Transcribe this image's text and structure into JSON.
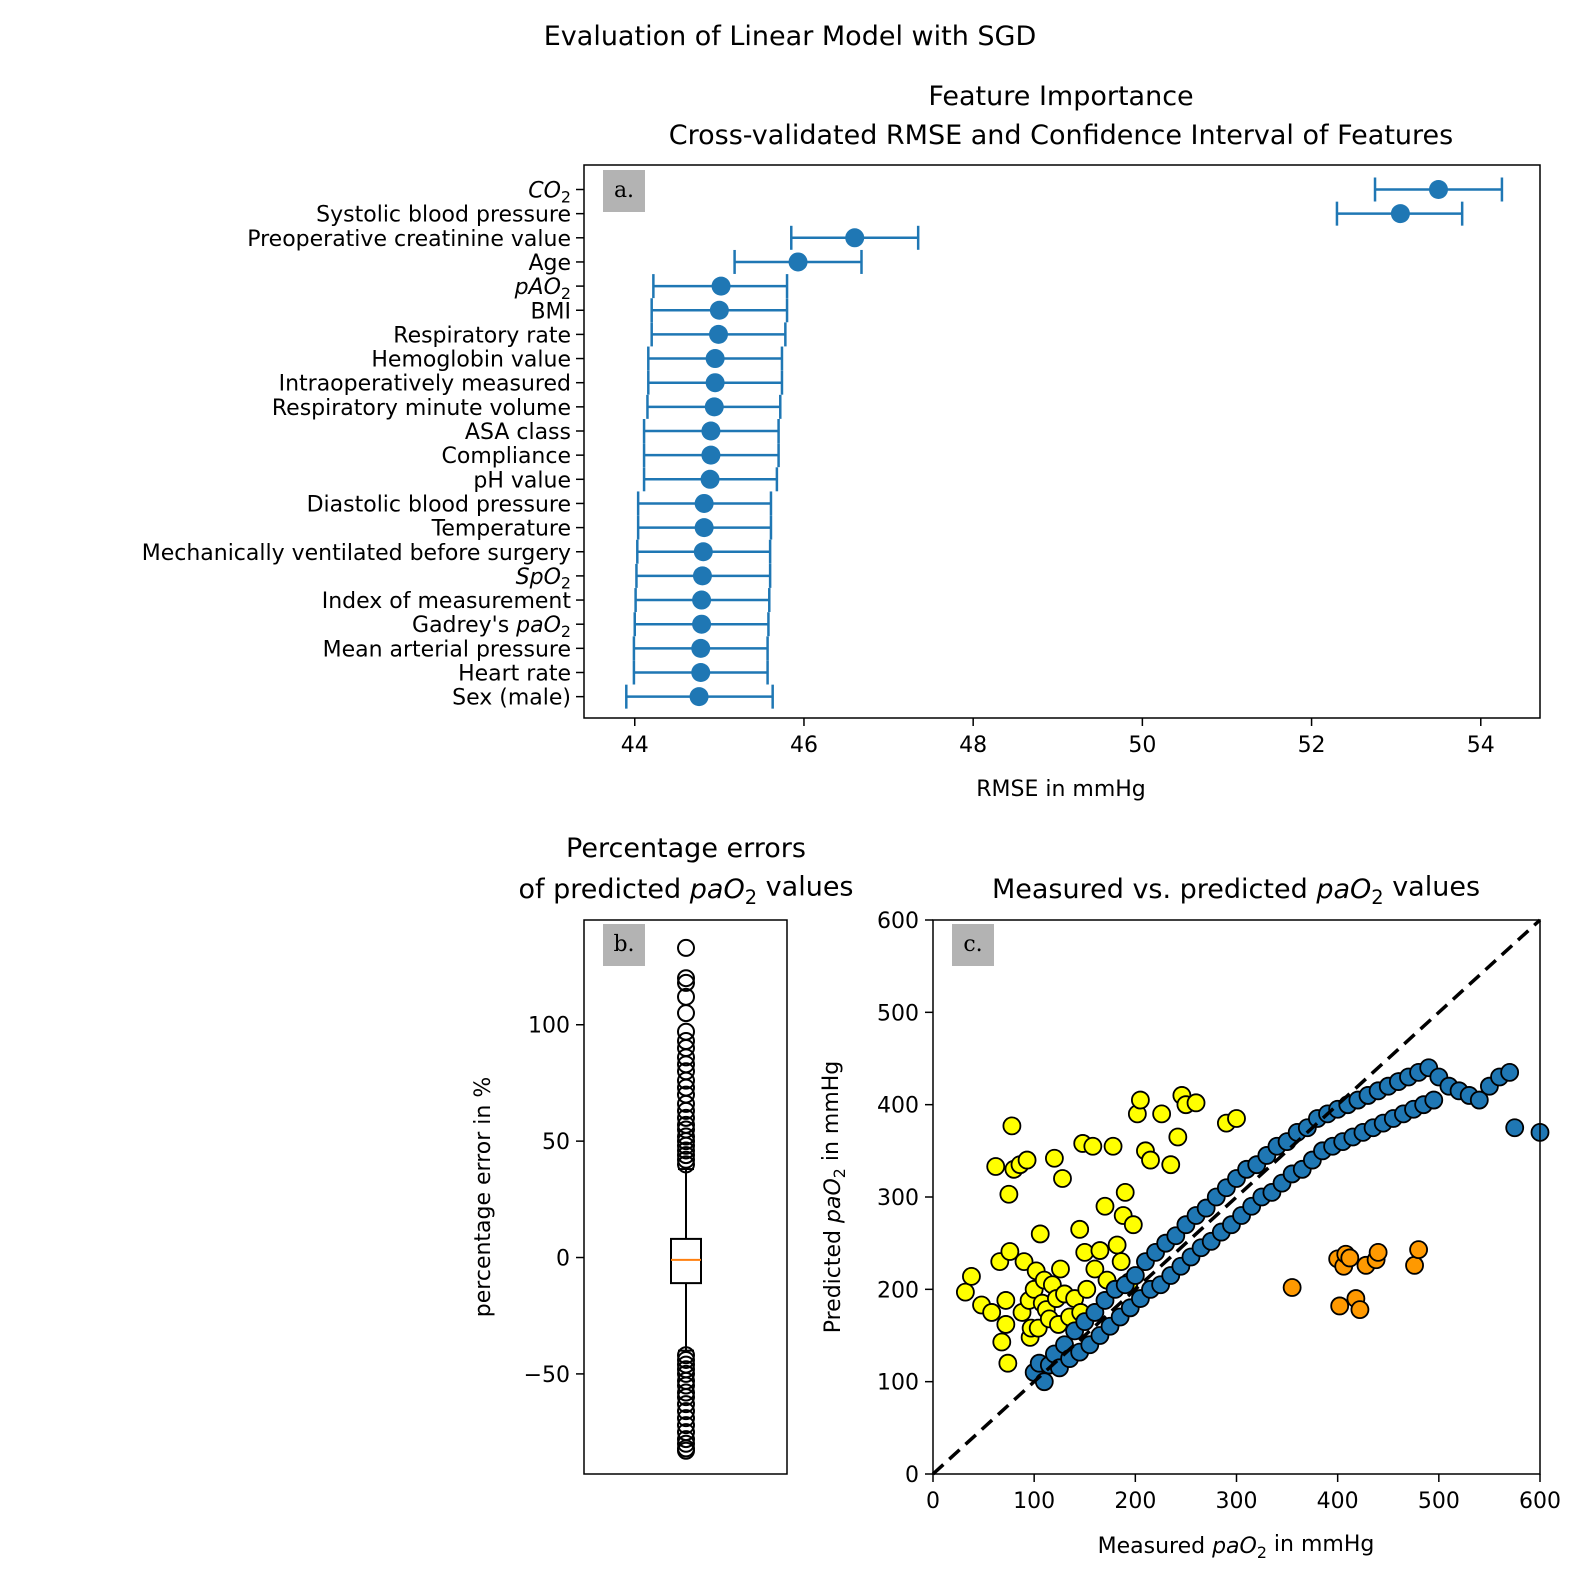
{
  "suptitle": "Evaluation of Linear Model with SGD",
  "colors": {
    "series_blue": "#1f77b4",
    "yellow": "#ffff00",
    "orange": "#ff9900",
    "median": "#ff7f0e",
    "tag_bg": "#b3b3b3"
  },
  "chart_data": [
    {
      "id": "a",
      "type": "errorbar",
      "panel_tag": "a.",
      "title": "Feature Importance",
      "subtitle": "Cross-validated RMSE and Confidence Interval of Features",
      "xlabel": "RMSE in mmHg",
      "ylabel": "",
      "xlim": [
        43.4,
        54.7
      ],
      "xticks": [
        44,
        46,
        48,
        50,
        52,
        54
      ],
      "grid": false,
      "features": [
        {
          "label": "CO",
          "sub": "2",
          "italic": true,
          "rmse": 53.5,
          "lo": 52.75,
          "hi": 54.25
        },
        {
          "label": "Systolic blood pressure",
          "rmse": 53.05,
          "lo": 52.3,
          "hi": 53.78
        },
        {
          "label": "Preoperative creatinine value",
          "rmse": 46.6,
          "lo": 45.85,
          "hi": 47.35
        },
        {
          "label": "Age",
          "rmse": 45.93,
          "lo": 45.18,
          "hi": 46.68
        },
        {
          "label": "pAO",
          "sub": "2",
          "italic": true,
          "rmse": 45.02,
          "lo": 44.22,
          "hi": 45.8
        },
        {
          "label": "BMI",
          "rmse": 45.0,
          "lo": 44.2,
          "hi": 45.8
        },
        {
          "label": "Respiratory rate",
          "rmse": 44.99,
          "lo": 44.2,
          "hi": 45.78
        },
        {
          "label": "Hemoglobin value",
          "rmse": 44.95,
          "lo": 44.16,
          "hi": 45.74
        },
        {
          "label": "Intraoperatively measured",
          "rmse": 44.95,
          "lo": 44.16,
          "hi": 45.74
        },
        {
          "label": "Respiratory minute volume",
          "rmse": 44.94,
          "lo": 44.15,
          "hi": 45.72
        },
        {
          "label": "ASA class",
          "rmse": 44.9,
          "lo": 44.11,
          "hi": 45.7
        },
        {
          "label": "Compliance",
          "rmse": 44.9,
          "lo": 44.11,
          "hi": 45.7
        },
        {
          "label": "pH value",
          "rmse": 44.89,
          "lo": 44.11,
          "hi": 45.68
        },
        {
          "label": "Diastolic blood pressure",
          "rmse": 44.82,
          "lo": 44.04,
          "hi": 45.61
        },
        {
          "label": "Temperature",
          "rmse": 44.82,
          "lo": 44.04,
          "hi": 45.61
        },
        {
          "label": "Mechanically ventilated before surgery",
          "rmse": 44.81,
          "lo": 44.03,
          "hi": 45.6
        },
        {
          "label": "SpO",
          "sub": "2",
          "italic": true,
          "rmse": 44.8,
          "lo": 44.02,
          "hi": 45.6
        },
        {
          "label": "Index of measurement",
          "rmse": 44.79,
          "lo": 44.01,
          "hi": 45.59
        },
        {
          "label": "Gadrey's ",
          "label_italic": "paO",
          "sub": "2",
          "rmse": 44.79,
          "lo": 44.0,
          "hi": 45.58
        },
        {
          "label": "Mean arterial pressure",
          "rmse": 44.78,
          "lo": 43.99,
          "hi": 45.57
        },
        {
          "label": "Heart rate",
          "rmse": 44.78,
          "lo": 43.99,
          "hi": 45.57
        },
        {
          "label": "Sex (male)",
          "rmse": 44.76,
          "lo": 43.9,
          "hi": 45.63
        }
      ]
    },
    {
      "id": "b",
      "type": "boxplot",
      "panel_tag": "b.",
      "title_line1": "Percentage errors",
      "title_line2_pre": "of predicted ",
      "title_line2_italic": "paO",
      "title_line2_sub": "2",
      "title_line2_post": " values",
      "xlabel": "",
      "ylabel": "percentage error in %",
      "ylim": [
        -93,
        145
      ],
      "yticks": [
        -50,
        0,
        50,
        100
      ],
      "ytick_labels": [
        "−50",
        "0",
        "50",
        "100"
      ],
      "q1": -11,
      "median": -1,
      "q3": 8,
      "whisker_low": -40,
      "whisker_high": 38,
      "outliers_high": [
        40,
        42,
        44,
        46,
        48,
        50,
        52,
        55,
        57,
        60,
        63,
        66,
        70,
        73,
        76,
        80,
        83,
        86,
        90,
        93,
        97,
        105,
        112,
        118,
        120,
        133
      ],
      "outliers_low": [
        -42,
        -44,
        -46,
        -48,
        -50,
        -53,
        -55,
        -58,
        -60,
        -63,
        -66,
        -69,
        -72,
        -75,
        -78,
        -80,
        -82,
        -83
      ]
    },
    {
      "id": "c",
      "type": "scatter",
      "panel_tag": "c.",
      "title_pre": "Measured vs. predicted ",
      "title_italic": "paO",
      "title_sub": "2",
      "title_post": " values",
      "xlabel_pre": "Measured ",
      "xlabel_italic": "paO",
      "xlabel_sub": "2",
      "xlabel_post": " in mmHg",
      "ylabel_pre": "Predicted ",
      "ylabel_italic": "paO",
      "ylabel_sub": "2",
      "ylabel_post": " in mmHg",
      "xlim": [
        0,
        600
      ],
      "ylim": [
        0,
        600
      ],
      "xticks": [
        0,
        100,
        200,
        300,
        400,
        500,
        600
      ],
      "yticks": [
        0,
        100,
        200,
        300,
        400,
        500,
        600
      ],
      "reference_line": "y = x (dashed)",
      "series": [
        {
          "color": "yellow",
          "points": [
            [
              32,
              197
            ],
            [
              38,
              214
            ],
            [
              48,
              183
            ],
            [
              58,
              175
            ],
            [
              62,
              333
            ],
            [
              66,
              230
            ],
            [
              68,
              143
            ],
            [
              72,
              162
            ],
            [
              72,
              188
            ],
            [
              74,
              120
            ],
            [
              75,
              303
            ],
            [
              76,
              241
            ],
            [
              78,
              377
            ],
            [
              80,
              330
            ],
            [
              86,
              335
            ],
            [
              88,
              175
            ],
            [
              90,
              230
            ],
            [
              93,
              340
            ],
            [
              95,
              188
            ],
            [
              96,
              148
            ],
            [
              97,
              158
            ],
            [
              100,
              200
            ],
            [
              102,
              220
            ],
            [
              104,
              158
            ],
            [
              106,
              260
            ],
            [
              108,
              185
            ],
            [
              110,
              210
            ],
            [
              112,
              178
            ],
            [
              115,
              168
            ],
            [
              118,
              205
            ],
            [
              120,
              342
            ],
            [
              122,
              190
            ],
            [
              124,
              162
            ],
            [
              126,
              222
            ],
            [
              128,
              320
            ],
            [
              130,
              195
            ],
            [
              135,
              170
            ],
            [
              140,
              190
            ],
            [
              145,
              265
            ],
            [
              146,
              175
            ],
            [
              148,
              358
            ],
            [
              150,
              240
            ],
            [
              152,
              200
            ],
            [
              158,
              355
            ],
            [
              160,
              222
            ],
            [
              165,
              242
            ],
            [
              170,
              290
            ],
            [
              172,
              210
            ],
            [
              178,
              355
            ],
            [
              182,
              248
            ],
            [
              186,
              230
            ],
            [
              188,
              280
            ],
            [
              190,
              305
            ],
            [
              194,
              208
            ],
            [
              198,
              270
            ],
            [
              202,
              390
            ],
            [
              205,
              405
            ],
            [
              210,
              350
            ],
            [
              215,
              340
            ],
            [
              226,
              390
            ],
            [
              235,
              335
            ],
            [
              242,
              365
            ],
            [
              246,
              410
            ],
            [
              250,
              400
            ],
            [
              260,
              402
            ],
            [
              290,
              380
            ],
            [
              300,
              385
            ]
          ]
        },
        {
          "color": "orange",
          "points": [
            [
              355,
              202
            ],
            [
              400,
              233
            ],
            [
              402,
              182
            ],
            [
              406,
              225
            ],
            [
              408,
              238
            ],
            [
              412,
              234
            ],
            [
              418,
              190
            ],
            [
              422,
              178
            ],
            [
              428,
              226
            ],
            [
              438,
              232
            ],
            [
              440,
              240
            ],
            [
              476,
              226
            ],
            [
              480,
              243
            ]
          ]
        },
        {
          "color": "series_blue",
          "points": [
            [
              100,
              110
            ],
            [
              105,
              120
            ],
            [
              110,
              100
            ],
            [
              115,
              118
            ],
            [
              120,
              130
            ],
            [
              125,
              115
            ],
            [
              130,
              140
            ],
            [
              135,
              125
            ],
            [
              140,
              155
            ],
            [
              145,
              132
            ],
            [
              150,
              165
            ],
            [
              155,
              140
            ],
            [
              160,
              175
            ],
            [
              165,
              150
            ],
            [
              170,
              188
            ],
            [
              175,
              160
            ],
            [
              180,
              200
            ],
            [
              185,
              170
            ],
            [
              190,
              205
            ],
            [
              195,
              180
            ],
            [
              200,
              215
            ],
            [
              205,
              190
            ],
            [
              210,
              230
            ],
            [
              215,
              200
            ],
            [
              220,
              240
            ],
            [
              225,
              205
            ],
            [
              230,
              250
            ],
            [
              235,
              215
            ],
            [
              240,
              258
            ],
            [
              245,
              225
            ],
            [
              250,
              270
            ],
            [
              255,
              235
            ],
            [
              260,
              280
            ],
            [
              265,
              245
            ],
            [
              270,
              288
            ],
            [
              275,
              252
            ],
            [
              280,
              300
            ],
            [
              285,
              262
            ],
            [
              290,
              310
            ],
            [
              295,
              270
            ],
            [
              300,
              320
            ],
            [
              305,
              280
            ],
            [
              310,
              330
            ],
            [
              315,
              290
            ],
            [
              320,
              335
            ],
            [
              325,
              300
            ],
            [
              330,
              345
            ],
            [
              335,
              305
            ],
            [
              340,
              355
            ],
            [
              345,
              315
            ],
            [
              350,
              360
            ],
            [
              355,
              325
            ],
            [
              360,
              370
            ],
            [
              365,
              330
            ],
            [
              370,
              375
            ],
            [
              375,
              340
            ],
            [
              380,
              385
            ],
            [
              385,
              350
            ],
            [
              390,
              390
            ],
            [
              395,
              355
            ],
            [
              400,
              395
            ],
            [
              405,
              360
            ],
            [
              410,
              400
            ],
            [
              415,
              365
            ],
            [
              420,
              405
            ],
            [
              425,
              370
            ],
            [
              430,
              410
            ],
            [
              435,
              375
            ],
            [
              440,
              415
            ],
            [
              445,
              380
            ],
            [
              450,
              420
            ],
            [
              455,
              385
            ],
            [
              460,
              425
            ],
            [
              465,
              390
            ],
            [
              470,
              430
            ],
            [
              475,
              395
            ],
            [
              480,
              435
            ],
            [
              485,
              400
            ],
            [
              490,
              440
            ],
            [
              495,
              405
            ],
            [
              500,
              430
            ],
            [
              510,
              420
            ],
            [
              520,
              415
            ],
            [
              530,
              410
            ],
            [
              540,
              405
            ],
            [
              550,
              420
            ],
            [
              560,
              430
            ],
            [
              570,
              435
            ],
            [
              575,
              375
            ],
            [
              600,
              370
            ]
          ]
        }
      ]
    }
  ]
}
